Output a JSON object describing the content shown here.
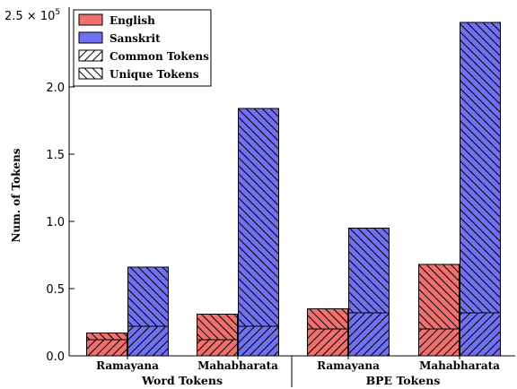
{
  "chart_data": {
    "type": "bar",
    "ylabel": "Num. of Tokens",
    "y_offset_label": "2.5 × 10",
    "y_offset_exponent": "5",
    "ylim": [
      0,
      2.5
    ],
    "y_scale_multiplier": 100000,
    "yticks": [
      {
        "value": 0,
        "label": "0.0"
      },
      {
        "value": 0.5,
        "label": "0.5"
      },
      {
        "value": 1.0,
        "label": "1.0"
      },
      {
        "value": 1.5,
        "label": "1.5"
      },
      {
        "value": 2.0,
        "label": "2.0"
      }
    ],
    "groups": [
      {
        "label": "Word Tokens",
        "categories": [
          "Ramayana",
          "Mahabharata"
        ]
      },
      {
        "label": "BPE Tokens",
        "categories": [
          "Ramayana",
          "Mahabharata"
        ]
      }
    ],
    "categories": [
      "Ramayana",
      "Mahabharata",
      "Ramayana",
      "Mahabharata"
    ],
    "series": [
      {
        "name": "English",
        "color": "#f07070",
        "total": [
          0.17,
          0.31,
          0.35,
          0.68
        ],
        "common": [
          0.12,
          0.12,
          0.2,
          0.2
        ]
      },
      {
        "name": "Sanskrit",
        "color": "#7070f0",
        "total": [
          0.66,
          1.84,
          0.95,
          2.48
        ],
        "common": [
          0.22,
          0.22,
          0.32,
          0.32
        ]
      }
    ],
    "legend": {
      "placement": "top-left",
      "entries": [
        {
          "label": "English",
          "kind": "color",
          "color": "#f07070"
        },
        {
          "label": "Sanskrit",
          "kind": "color",
          "color": "#7070f0"
        },
        {
          "label": "Common Tokens",
          "kind": "hatch-forward"
        },
        {
          "label": "Unique Tokens",
          "kind": "hatch-back"
        }
      ]
    },
    "grid": false
  }
}
